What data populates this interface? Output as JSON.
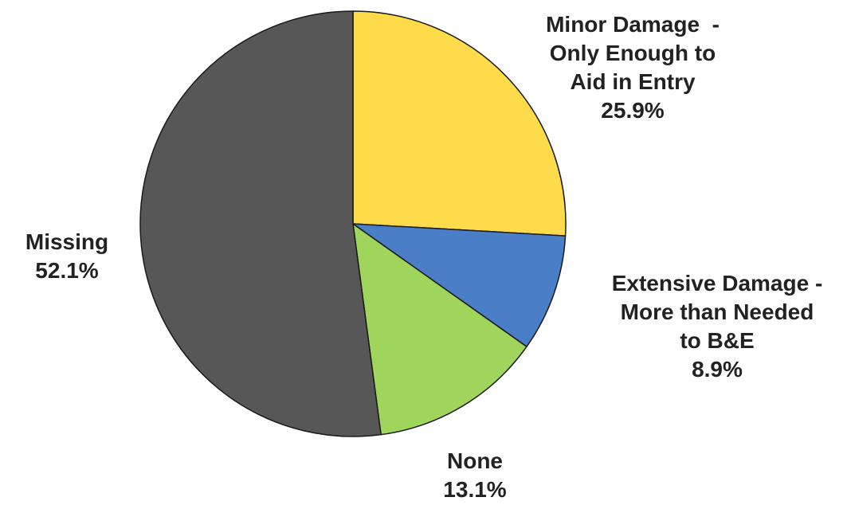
{
  "chart_data": {
    "type": "pie",
    "start_angle_deg": 0,
    "direction": "clockwise",
    "slices": [
      {
        "label_lines": [
          "Minor Damage  -",
          "Only Enough to",
          "Aid in Entry"
        ],
        "percent_label": "25.9%",
        "value": 25.9,
        "color": "#fddb4a"
      },
      {
        "label_lines": [
          "Extensive Damage -",
          "More than Needed",
          "to B&E"
        ],
        "percent_label": "8.9%",
        "value": 8.9,
        "color": "#4a7ec6"
      },
      {
        "label_lines": [
          "None"
        ],
        "percent_label": "13.1%",
        "value": 13.1,
        "color": "#9fd45d"
      },
      {
        "label_lines": [
          "Missing"
        ],
        "percent_label": "52.1%",
        "value": 52.1,
        "color": "#575757"
      }
    ]
  }
}
